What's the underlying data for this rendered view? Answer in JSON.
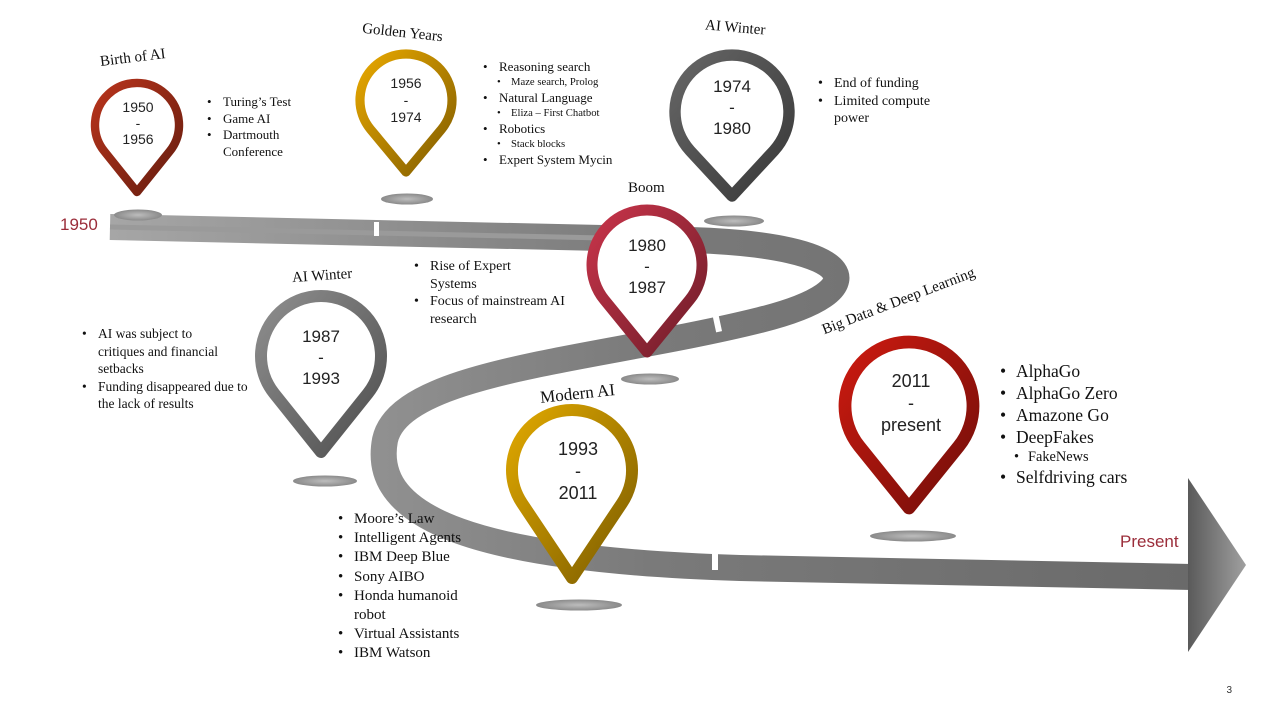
{
  "timeline": {
    "start_label": "1950",
    "end_label": "Present",
    "page_number": "3"
  },
  "eras": [
    {
      "title": "Birth of AI",
      "start": "1950",
      "sep": "-",
      "end": "1956",
      "color": "#b8341c",
      "items": [
        {
          "t": "Turing’s Test"
        },
        {
          "t": "Game AI"
        },
        {
          "t": "Dartmouth Conference"
        }
      ]
    },
    {
      "title": "Golden Years",
      "start": "1956",
      "sep": "-",
      "end": "1974",
      "color": "#e8a800",
      "items": [
        {
          "t": "Reasoning search"
        },
        {
          "t": "Maze search, Prolog",
          "sub": true
        },
        {
          "t": "Natural Language"
        },
        {
          "t": "Eliza – First Chatbot",
          "sub": true
        },
        {
          "t": "Robotics"
        },
        {
          "t": "Stack blocks",
          "sub": true
        },
        {
          "t": "Expert System Mycin"
        }
      ]
    },
    {
      "title": "AI Winter",
      "start": "1974",
      "sep": "-",
      "end": "1980",
      "color": "#666666",
      "items": [
        {
          "t": "End of funding"
        },
        {
          "t": "Limited compute power"
        }
      ]
    },
    {
      "title": "Boom",
      "start": "1980",
      "sep": "-",
      "end": "1987",
      "color": "#c8344a",
      "items": [
        {
          "t": "Rise of Expert Systems"
        },
        {
          "t": "Focus of mainstream AI research"
        }
      ]
    },
    {
      "title": "AI Winter",
      "start": "1987",
      "sep": "-",
      "end": "1993",
      "color": "#8e8e8e",
      "items": [
        {
          "t": "AI was subject to critiques and financial setbacks"
        },
        {
          "t": "Funding disappeared due to the lack of results"
        }
      ]
    },
    {
      "title": "Modern AI",
      "start": "1993",
      "sep": "-",
      "end": "2011",
      "color": "#e0a800",
      "items": [
        {
          "t": "Moore’s Law"
        },
        {
          "t": "Intelligent Agents"
        },
        {
          "t": "IBM Deep Blue"
        },
        {
          "t": "Sony AIBO"
        },
        {
          "t": "Honda humanoid robot"
        },
        {
          "t": "Virtual Assistants"
        },
        {
          "t": "IBM Watson"
        }
      ]
    },
    {
      "title": "Big Data & Deep Learning",
      "start": "2011",
      "sep": "-",
      "end": "present",
      "color": "#cc1a10",
      "items": [
        {
          "t": "AlphaGo"
        },
        {
          "t": "AlphaGo Zero"
        },
        {
          "t": "Amazone Go"
        },
        {
          "t": "DeepFakes"
        },
        {
          "t": "FakeNews",
          "sub": true
        },
        {
          "t": "Selfdriving cars"
        }
      ]
    }
  ]
}
